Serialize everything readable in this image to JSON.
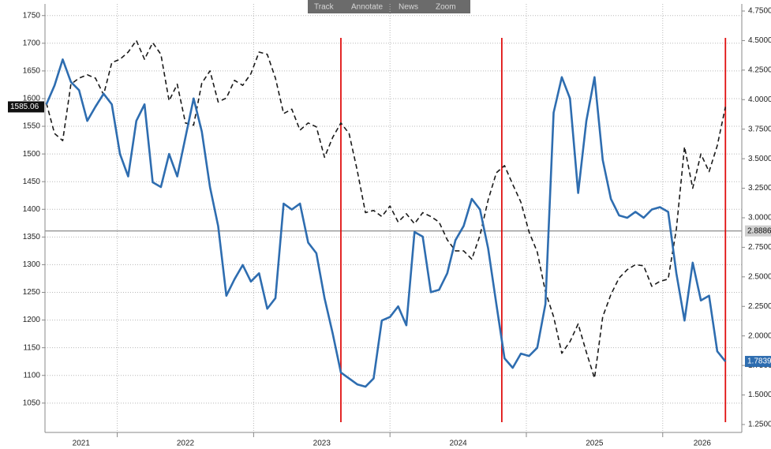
{
  "toolbar": [
    "Track",
    "Annotate",
    "News",
    "Zoom"
  ],
  "chart_data": {
    "type": "line",
    "x": [
      2021.48,
      2021.54,
      2021.6,
      2021.66,
      2021.72,
      2021.78,
      2021.84,
      2021.9,
      2021.96,
      2022.02,
      2022.08,
      2022.14,
      2022.2,
      2022.26,
      2022.32,
      2022.38,
      2022.44,
      2022.5,
      2022.56,
      2022.62,
      2022.68,
      2022.74,
      2022.8,
      2022.86,
      2022.92,
      2022.98,
      2023.04,
      2023.1,
      2023.16,
      2023.22,
      2023.28,
      2023.34,
      2023.4,
      2023.46,
      2023.52,
      2023.58,
      2023.64,
      2023.7,
      2023.76,
      2023.82,
      2023.88,
      2023.94,
      2024,
      2024.06,
      2024.12,
      2024.18,
      2024.24,
      2024.3,
      2024.36,
      2024.42,
      2024.48,
      2024.54,
      2024.6,
      2024.66,
      2024.72,
      2024.78,
      2024.84,
      2024.9,
      2024.96,
      2025.02,
      2025.08,
      2025.14,
      2025.2,
      2025.26,
      2025.32,
      2025.38,
      2025.44,
      2025.5,
      2025.56,
      2025.62,
      2025.68,
      2025.74,
      2025.8,
      2025.86,
      2025.92,
      2025.98,
      2026.04,
      2026.1,
      2026.16,
      2026.22,
      2026.28,
      2026.34,
      2026.4,
      2026.46
    ],
    "series": [
      {
        "color": "#1a1a1a",
        "dash": true,
        "axis": "y",
        "last_label": "1585.06",
        "values": [
          1592,
          1537,
          1524,
          1626,
          1637,
          1643,
          1637,
          1607,
          1665,
          1671,
          1684,
          1705,
          1671,
          1701,
          1680,
          1596,
          1626,
          1556,
          1552,
          1628,
          1650,
          1594,
          1601,
          1633,
          1624,
          1645,
          1684,
          1680,
          1637,
          1573,
          1581,
          1543,
          1556,
          1549,
          1494,
          1530,
          1556,
          1537,
          1470,
          1394,
          1398,
          1387,
          1406,
          1377,
          1392,
          1374,
          1394,
          1387,
          1377,
          1345,
          1325,
          1325,
          1310,
          1353,
          1417,
          1466,
          1479,
          1445,
          1413,
          1359,
          1323,
          1251,
          1206,
          1140,
          1161,
          1193,
          1142,
          1095,
          1206,
          1246,
          1276,
          1291,
          1300,
          1298,
          1261,
          1270,
          1274,
          1364,
          1513,
          1438,
          1500,
          1468,
          1515,
          1585.06
        ]
      },
      {
        "color": "#2e6db0",
        "dash": false,
        "axis": "y2",
        "last_label": "1.7839",
        "values": [
          3.96,
          4.12,
          4.34,
          4.15,
          4.08,
          3.82,
          3.94,
          4.05,
          3.96,
          3.54,
          3.35,
          3.82,
          3.96,
          3.3,
          3.26,
          3.54,
          3.35,
          3.68,
          4.01,
          3.73,
          3.26,
          2.93,
          2.34,
          2.48,
          2.6,
          2.46,
          2.53,
          2.23,
          2.32,
          3.12,
          3.07,
          3.12,
          2.79,
          2.7,
          2.32,
          2.02,
          1.69,
          1.64,
          1.59,
          1.57,
          1.64,
          2.13,
          2.16,
          2.25,
          2.09,
          2.88,
          2.84,
          2.37,
          2.39,
          2.53,
          2.81,
          2.93,
          3.16,
          3.07,
          2.74,
          2.27,
          1.81,
          1.73,
          1.85,
          1.83,
          1.9,
          2.27,
          3.89,
          4.19,
          4.01,
          3.21,
          3.82,
          4.19,
          3.49,
          3.16,
          3.02,
          3.0,
          3.05,
          3.0,
          3.07,
          3.09,
          3.05,
          2.53,
          2.13,
          2.62,
          2.3,
          2.34,
          1.87,
          1.7839
        ]
      }
    ],
    "xlim": [
      2021.47,
      2026.58
    ],
    "xticks": [
      2021,
      2022,
      2023,
      2024,
      2025,
      2026
    ],
    "ylim": [
      997,
      1771
    ],
    "yticks": [
      1050,
      1100,
      1150,
      1200,
      1250,
      1300,
      1350,
      1400,
      1450,
      1500,
      1550,
      1600,
      1650,
      1700,
      1750
    ],
    "y2lim": [
      1.183,
      4.81
    ],
    "y2ticks": [
      {
        "value": 1.25,
        "label": "1.2500"
      },
      {
        "value": 1.5,
        "label": "1.5000"
      },
      {
        "value": 1.75,
        "label": "1.7500"
      },
      {
        "value": 2,
        "label": "2.0000"
      },
      {
        "value": 2.25,
        "label": "2.2500"
      },
      {
        "value": 2.5,
        "label": "2.5000"
      },
      {
        "value": 2.75,
        "label": "2.7500"
      },
      {
        "value": 3,
        "label": "3.0000"
      },
      {
        "value": 3.25,
        "label": "3.2500"
      },
      {
        "value": 3.5,
        "label": "3.5000"
      },
      {
        "value": 3.75,
        "label": "3.7500"
      },
      {
        "value": 4,
        "label": "4.0000"
      },
      {
        "value": 4.25,
        "label": "4.2500"
      },
      {
        "value": 4.5,
        "label": "4.5000"
      },
      {
        "value": 4.75,
        "label": "4.7500"
      }
    ],
    "grid": true,
    "reference_line": {
      "value": 2.8886,
      "axis": "y2",
      "color": "#9a9a9a"
    },
    "vertical_lines": {
      "x": [
        2023.64,
        2024.82,
        2026.46
      ],
      "color": "#e01010"
    }
  }
}
